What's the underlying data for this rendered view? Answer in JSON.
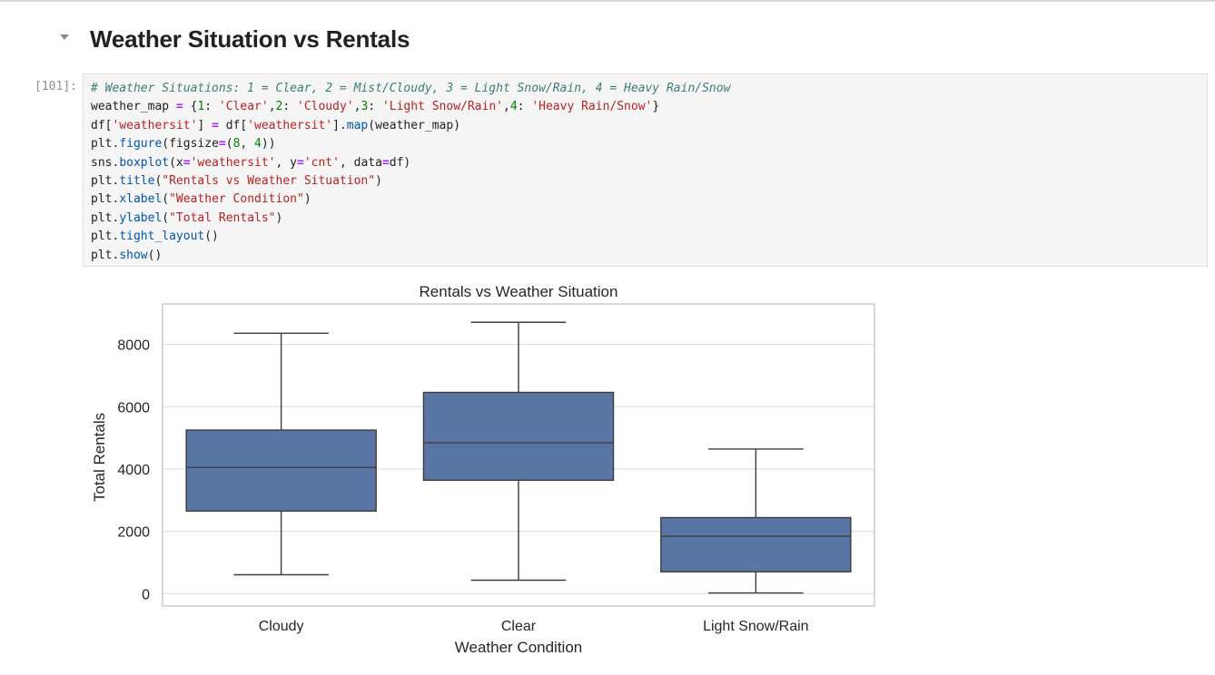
{
  "cell": {
    "heading": "Weather Situation vs Rentals",
    "prompt": "[101]:",
    "code": {
      "line1": "# Weather Situations: 1 = Clear, 2 = Mist/Cloudy, 3 = Light Snow/Rain, 4 = Heavy Rain/Snow",
      "l2_var": "weather_map",
      "l2_n1": "1",
      "l2_s1": "'Clear'",
      "l2_n2": "2",
      "l2_s2": "'Cloudy'",
      "l2_n3": "3",
      "l2_s3": "'Light Snow/Rain'",
      "l2_n4": "4",
      "l2_s4": "'Heavy Rain/Snow'",
      "l3_df": "df",
      "l3_s1": "'weathersit'",
      "l3_df2": "df",
      "l3_s2": "'weathersit'",
      "l3_fn": "map",
      "l3_arg": "weather_map",
      "l4_obj": "plt",
      "l4_fn": "figure",
      "l4_kw": "figsize",
      "l4_n1": "8",
      "l4_n2": "4",
      "l5_obj": "sns",
      "l5_fn": "boxplot",
      "l5_s1": "'weathersit'",
      "l5_s2": "'cnt'",
      "l6_obj": "plt",
      "l6_fn": "title",
      "l6_s": "\"Rentals vs Weather Situation\"",
      "l7_obj": "plt",
      "l7_fn": "xlabel",
      "l7_s": "\"Weather Condition\"",
      "l8_obj": "plt",
      "l8_fn": "ylabel",
      "l8_s": "\"Total Rentals\"",
      "l9_obj": "plt",
      "l9_fn": "tight_layout",
      "l10_obj": "plt",
      "l10_fn": "show"
    }
  },
  "colors": {
    "box_fill": "#5975a4",
    "box_line": "#3d3d3d",
    "grid": "#d9d9d9",
    "frame": "#cccccc"
  },
  "chart_data": {
    "type": "box",
    "title": "Rentals vs Weather Situation",
    "xlabel": "Weather Condition",
    "ylabel": "Total Rentals",
    "ylim": [
      -400,
      9300
    ],
    "yticks": [
      0,
      2000,
      4000,
      6000,
      8000
    ],
    "grid": true,
    "categories": [
      "Cloudy",
      "Clear",
      "Light Snow/Rain"
    ],
    "boxes": [
      {
        "category": "Cloudy",
        "whisker_low": 605,
        "q1": 2650,
        "median": 4050,
        "q3": 5250,
        "whisker_high": 8360
      },
      {
        "category": "Clear",
        "whisker_low": 430,
        "q1": 3640,
        "median": 4840,
        "q3": 6460,
        "whisker_high": 8710
      },
      {
        "category": "Light Snow/Rain",
        "whisker_low": 20,
        "q1": 700,
        "median": 1840,
        "q3": 2440,
        "whisker_high": 4640
      }
    ]
  }
}
